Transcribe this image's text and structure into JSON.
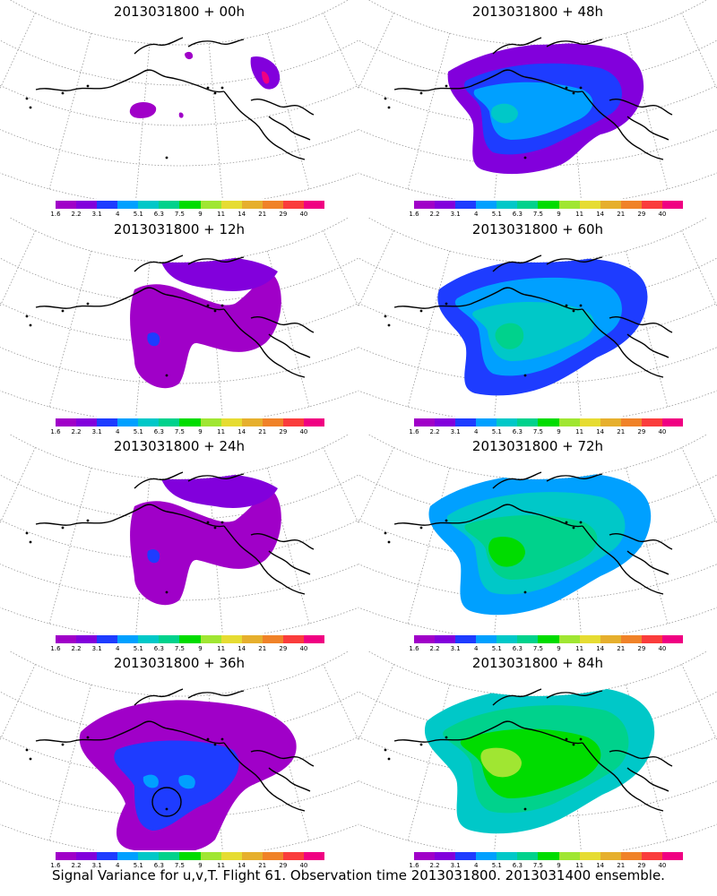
{
  "caption": "Signal Variance for u,v,T. Flight 61. Observation time 2013031800. 2013031400 ensemble.",
  "colorbar": {
    "colors": [
      "#a000c8",
      "#8200dc",
      "#1e3cff",
      "#00a0ff",
      "#00c8c8",
      "#00d28c",
      "#00dc00",
      "#a0e632",
      "#e6dc32",
      "#e6af2d",
      "#f08228",
      "#fa3c3c",
      "#f00082"
    ],
    "labels": [
      "1.6",
      "2.2",
      "3.1",
      "4",
      "5.1",
      "6.3",
      "7.5",
      "9",
      "11",
      "14",
      "21",
      "29",
      "40"
    ]
  },
  "panels": [
    {
      "title": "2013031800 + 00h",
      "intensity": 0
    },
    {
      "title": "2013031800 + 48h",
      "intensity": 3
    },
    {
      "title": "2013031800 + 12h",
      "intensity": 1
    },
    {
      "title": "2013031800 + 60h",
      "intensity": 4
    },
    {
      "title": "2013031800 + 24h",
      "intensity": 1
    },
    {
      "title": "2013031800 + 72h",
      "intensity": 5
    },
    {
      "title": "2013031800 + 36h",
      "intensity": 2
    },
    {
      "title": "2013031800 + 84h",
      "intensity": 6
    }
  ]
}
